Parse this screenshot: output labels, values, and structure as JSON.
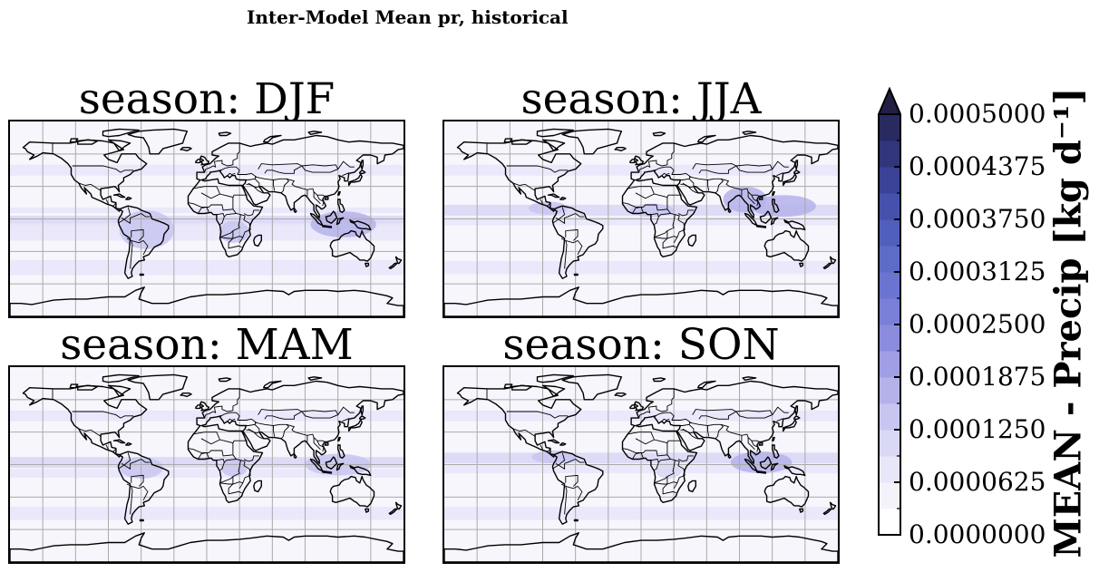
{
  "figure": {
    "suptitle": "Inter-Model Mean pr, historical"
  },
  "panels": [
    {
      "key": "DJF",
      "title": "season: DJF",
      "bands": [
        {
          "lat": -2,
          "w": 10,
          "level": 2
        },
        {
          "lat": 8,
          "w": 5,
          "level": 1
        },
        {
          "lat": -12,
          "w": 16,
          "level": 1
        },
        {
          "lat": 45,
          "w": 10,
          "level": 1
        },
        {
          "lat": -45,
          "w": 14,
          "level": 1
        }
      ],
      "blobs": [
        {
          "lon": -55,
          "lat": -10,
          "rx": 25,
          "ry": 18,
          "level": 2
        },
        {
          "lon": 125,
          "lat": -5,
          "rx": 30,
          "ry": 12,
          "level": 3
        },
        {
          "lon": 25,
          "lat": -12,
          "rx": 14,
          "ry": 10,
          "level": 2
        }
      ]
    },
    {
      "key": "JJA",
      "title": "season: JJA",
      "bands": [
        {
          "lat": 8,
          "w": 10,
          "level": 2
        },
        {
          "lat": -2,
          "w": 8,
          "level": 1
        },
        {
          "lat": 45,
          "w": 10,
          "level": 1
        },
        {
          "lat": -45,
          "w": 12,
          "level": 1
        }
      ],
      "blobs": [
        {
          "lon": 95,
          "lat": 18,
          "rx": 20,
          "ry": 12,
          "level": 3
        },
        {
          "lon": 130,
          "lat": 12,
          "rx": 30,
          "ry": 10,
          "level": 3
        },
        {
          "lon": -85,
          "lat": 10,
          "rx": 18,
          "ry": 6,
          "level": 2
        },
        {
          "lon": 10,
          "lat": 8,
          "rx": 20,
          "ry": 6,
          "level": 2
        }
      ]
    },
    {
      "key": "MAM",
      "title": "season: MAM",
      "bands": [
        {
          "lat": 2,
          "w": 10,
          "level": 2
        },
        {
          "lat": -8,
          "w": 8,
          "level": 1
        },
        {
          "lat": 45,
          "w": 10,
          "level": 1
        },
        {
          "lat": -45,
          "w": 12,
          "level": 1
        }
      ],
      "blobs": [
        {
          "lon": -60,
          "lat": -3,
          "rx": 20,
          "ry": 10,
          "level": 2
        },
        {
          "lon": 120,
          "lat": 0,
          "rx": 30,
          "ry": 10,
          "level": 2
        },
        {
          "lon": 25,
          "lat": -3,
          "rx": 12,
          "ry": 8,
          "level": 2
        }
      ]
    },
    {
      "key": "SON",
      "title": "season: SON",
      "bands": [
        {
          "lat": 6,
          "w": 10,
          "level": 2
        },
        {
          "lat": -4,
          "w": 8,
          "level": 1
        },
        {
          "lat": 45,
          "w": 10,
          "level": 1
        },
        {
          "lat": -45,
          "w": 12,
          "level": 1
        }
      ],
      "blobs": [
        {
          "lon": 110,
          "lat": 2,
          "rx": 28,
          "ry": 10,
          "level": 3
        },
        {
          "lon": -80,
          "lat": 7,
          "rx": 20,
          "ry": 6,
          "level": 2
        },
        {
          "lon": 25,
          "lat": -5,
          "rx": 12,
          "ry": 8,
          "level": 1
        }
      ]
    }
  ],
  "chart_data": {
    "type": "heatmap",
    "title": "Inter-Model Mean pr, historical",
    "variable": "pr",
    "experiment": "historical",
    "panel_titles": [
      "season: DJF",
      "season: JJA",
      "season: MAM",
      "season: SON"
    ],
    "seasons": [
      "DJF",
      "JJA",
      "MAM",
      "SON"
    ],
    "projection": "PlateCarree",
    "xlim": [
      -180,
      180
    ],
    "ylim": [
      -90,
      90
    ],
    "gridlines": true,
    "colorbar": {
      "label": "MEAN - Precip [kg d⁻¹]",
      "orientation": "vertical",
      "placement": "right",
      "extend": "max",
      "vmin": 0.0,
      "vmax": 0.0005,
      "n_levels": 16,
      "tick_values": [
        0.0,
        6.25e-05,
        0.000125,
        0.0001875,
        0.00025,
        0.0003125,
        0.000375,
        0.0004375,
        0.0005
      ],
      "tick_labels": [
        "0.0000000",
        "0.0000625",
        "0.0001250",
        "0.0001875",
        "0.0002500",
        "0.0003125",
        "0.0003750",
        "0.0004375",
        "0.0005000"
      ],
      "colors": [
        "#ffffff",
        "#f4f3fc",
        "#e8e7f9",
        "#d9d8f5",
        "#c8c6f0",
        "#b5b2ea",
        "#a09ee4",
        "#8c8cde",
        "#7a7fd8",
        "#6b75d0",
        "#5e6bc7",
        "#515fbc",
        "#4552ac",
        "#3a4396",
        "#31357c",
        "#282a60",
        "#221f44"
      ]
    }
  },
  "colors": {
    "ocean_base": "#f7f6fc",
    "grid": "#aaaaaa",
    "coast": "#000000"
  }
}
